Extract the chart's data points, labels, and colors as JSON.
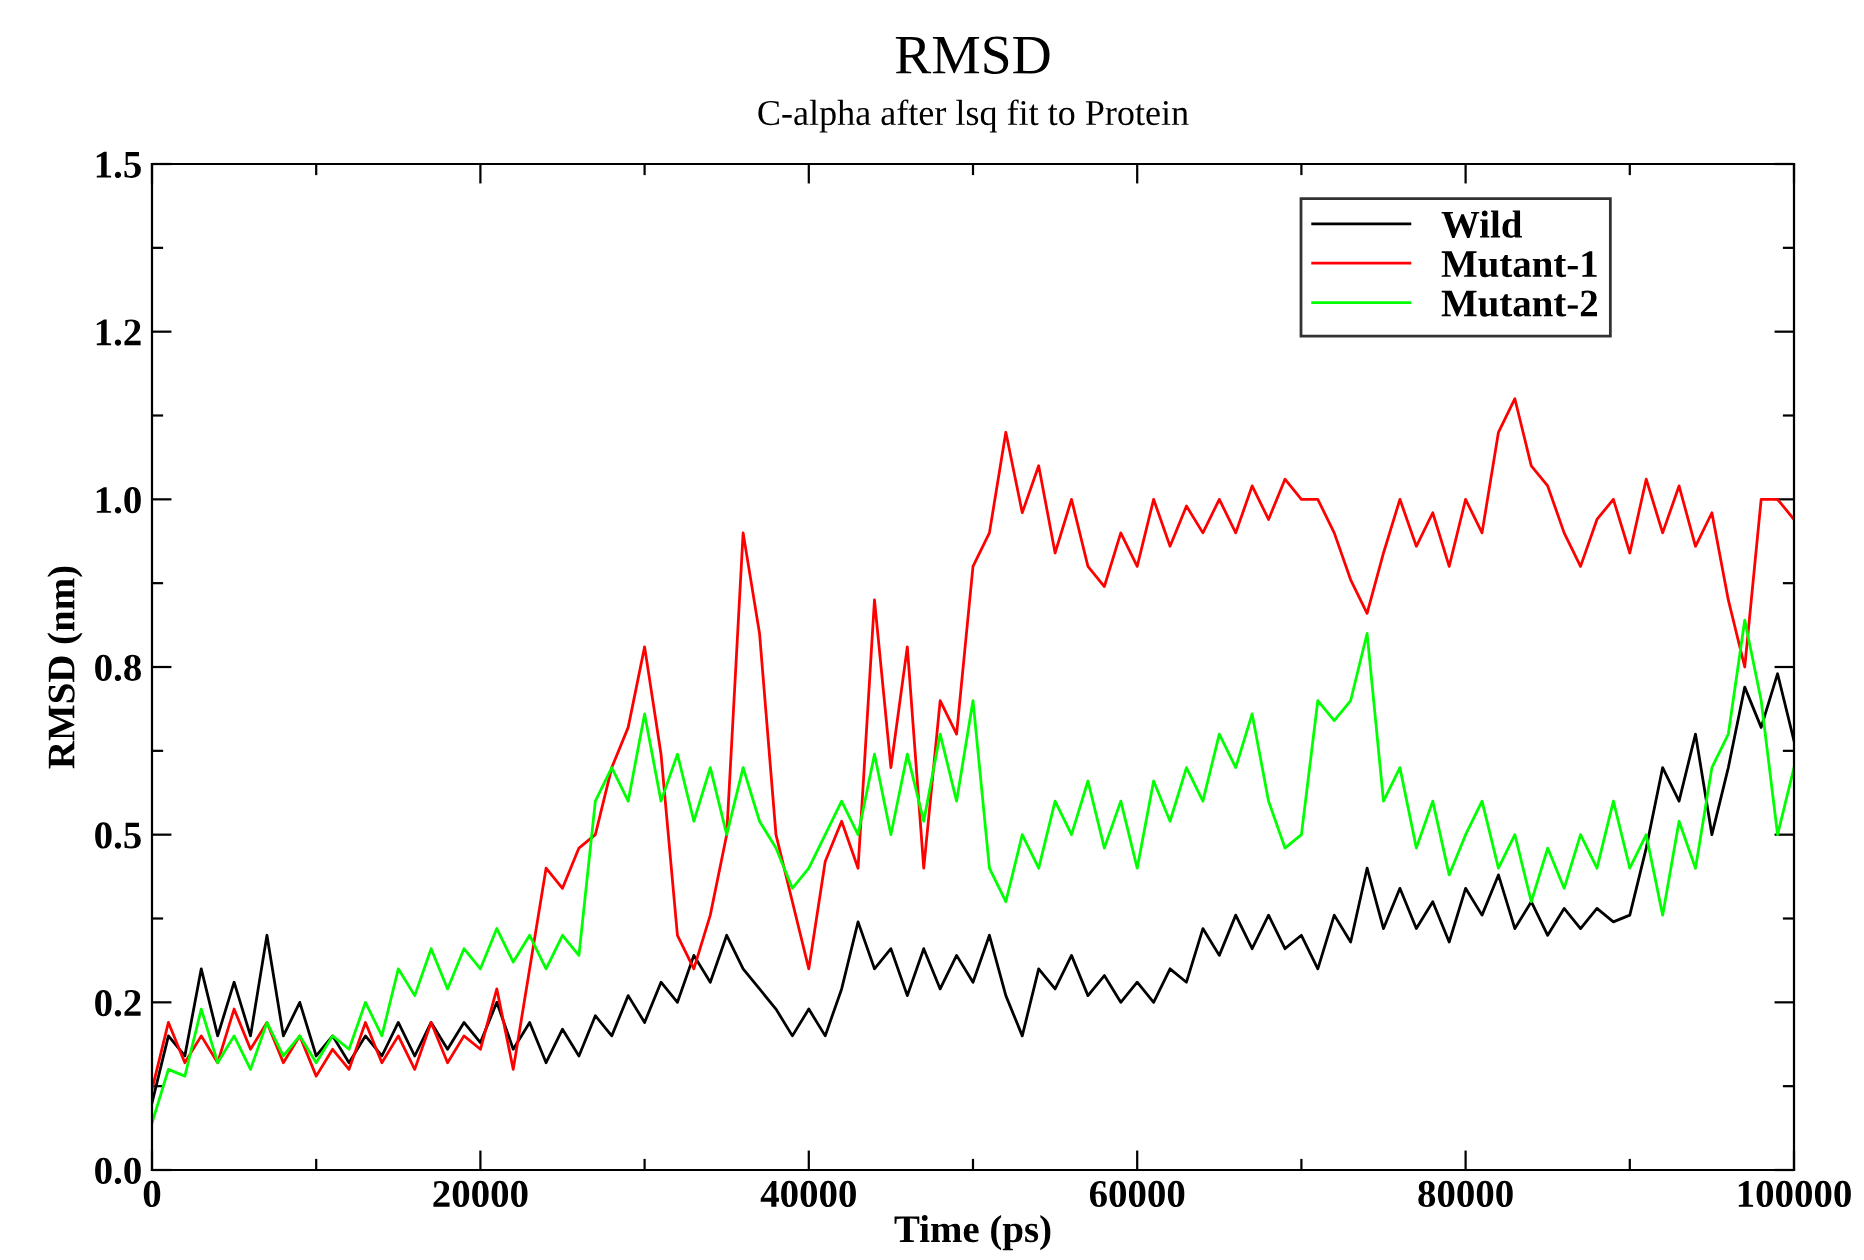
{
  "chart_data": {
    "type": "line",
    "title": "RMSD",
    "subtitle": "C-alpha after lsq fit to Protein",
    "xlabel": "Time (ps)",
    "ylabel": "RMSD (nm)",
    "x": [
      0,
      1000,
      2000,
      3000,
      4000,
      5000,
      6000,
      7000,
      8000,
      9000,
      10000,
      11000,
      12000,
      13000,
      14000,
      15000,
      16000,
      17000,
      18000,
      19000,
      20000,
      21000,
      22000,
      23000,
      24000,
      25000,
      26000,
      27000,
      28000,
      29000,
      30000,
      31000,
      32000,
      33000,
      34000,
      35000,
      36000,
      37000,
      38000,
      39000,
      40000,
      41000,
      42000,
      43000,
      44000,
      45000,
      46000,
      47000,
      48000,
      49000,
      50000,
      51000,
      52000,
      53000,
      54000,
      55000,
      56000,
      57000,
      58000,
      59000,
      60000,
      61000,
      62000,
      63000,
      64000,
      65000,
      66000,
      67000,
      68000,
      69000,
      70000,
      71000,
      72000,
      73000,
      74000,
      75000,
      76000,
      77000,
      78000,
      79000,
      80000,
      81000,
      82000,
      83000,
      84000,
      85000,
      86000,
      87000,
      88000,
      89000,
      90000,
      91000,
      92000,
      93000,
      94000,
      95000,
      96000,
      97000,
      98000,
      99000,
      100000
    ],
    "series": [
      {
        "name": "Wild",
        "color": "#000000",
        "values": [
          0.1,
          0.2,
          0.17,
          0.3,
          0.2,
          0.28,
          0.2,
          0.35,
          0.2,
          0.25,
          0.17,
          0.2,
          0.16,
          0.2,
          0.17,
          0.22,
          0.17,
          0.22,
          0.18,
          0.22,
          0.19,
          0.25,
          0.18,
          0.22,
          0.16,
          0.21,
          0.17,
          0.23,
          0.2,
          0.26,
          0.22,
          0.28,
          0.25,
          0.32,
          0.28,
          0.35,
          0.3,
          0.27,
          0.24,
          0.2,
          0.24,
          0.2,
          0.27,
          0.37,
          0.3,
          0.33,
          0.26,
          0.33,
          0.27,
          0.32,
          0.28,
          0.35,
          0.26,
          0.2,
          0.3,
          0.27,
          0.32,
          0.26,
          0.29,
          0.25,
          0.28,
          0.25,
          0.3,
          0.28,
          0.36,
          0.32,
          0.38,
          0.33,
          0.38,
          0.33,
          0.35,
          0.3,
          0.38,
          0.34,
          0.45,
          0.36,
          0.42,
          0.36,
          0.4,
          0.34,
          0.42,
          0.38,
          0.44,
          0.36,
          0.4,
          0.35,
          0.39,
          0.36,
          0.39,
          0.37,
          0.38,
          0.48,
          0.6,
          0.55,
          0.65,
          0.5,
          0.6,
          0.72,
          0.66,
          0.74,
          0.64
        ]
      },
      {
        "name": "Mutant-1",
        "color": "#ff0000",
        "values": [
          0.12,
          0.22,
          0.16,
          0.2,
          0.16,
          0.24,
          0.18,
          0.22,
          0.16,
          0.2,
          0.14,
          0.18,
          0.15,
          0.22,
          0.16,
          0.2,
          0.15,
          0.22,
          0.16,
          0.2,
          0.18,
          0.27,
          0.15,
          0.3,
          0.45,
          0.42,
          0.48,
          0.5,
          0.6,
          0.66,
          0.78,
          0.62,
          0.35,
          0.3,
          0.38,
          0.5,
          0.95,
          0.8,
          0.5,
          0.4,
          0.3,
          0.46,
          0.52,
          0.45,
          0.85,
          0.6,
          0.78,
          0.45,
          0.7,
          0.65,
          0.9,
          0.95,
          1.1,
          0.98,
          1.05,
          0.92,
          1.0,
          0.9,
          0.87,
          0.95,
          0.9,
          1.0,
          0.93,
          0.99,
          0.95,
          1.0,
          0.95,
          1.02,
          0.97,
          1.03,
          1.0,
          1.0,
          0.95,
          0.88,
          0.83,
          0.92,
          1.0,
          0.93,
          0.98,
          0.9,
          1.0,
          0.95,
          1.1,
          1.15,
          1.05,
          1.02,
          0.95,
          0.9,
          0.97,
          1.0,
          0.92,
          1.03,
          0.95,
          1.02,
          0.93,
          0.98,
          0.85,
          0.75,
          1.0,
          1.0,
          0.97
        ]
      },
      {
        "name": "Mutant-2",
        "color": "#00ff00",
        "values": [
          0.07,
          0.15,
          0.14,
          0.24,
          0.16,
          0.2,
          0.15,
          0.22,
          0.17,
          0.2,
          0.16,
          0.2,
          0.18,
          0.25,
          0.2,
          0.3,
          0.26,
          0.33,
          0.27,
          0.33,
          0.3,
          0.36,
          0.31,
          0.35,
          0.3,
          0.35,
          0.32,
          0.55,
          0.6,
          0.55,
          0.68,
          0.55,
          0.62,
          0.52,
          0.6,
          0.5,
          0.6,
          0.52,
          0.48,
          0.42,
          0.45,
          0.5,
          0.55,
          0.5,
          0.62,
          0.5,
          0.62,
          0.52,
          0.65,
          0.55,
          0.7,
          0.45,
          0.4,
          0.5,
          0.45,
          0.55,
          0.5,
          0.58,
          0.48,
          0.55,
          0.45,
          0.58,
          0.52,
          0.6,
          0.55,
          0.65,
          0.6,
          0.68,
          0.55,
          0.48,
          0.5,
          0.7,
          0.67,
          0.7,
          0.8,
          0.55,
          0.6,
          0.48,
          0.55,
          0.44,
          0.5,
          0.55,
          0.45,
          0.5,
          0.4,
          0.48,
          0.42,
          0.5,
          0.45,
          0.55,
          0.45,
          0.5,
          0.38,
          0.52,
          0.45,
          0.6,
          0.65,
          0.82,
          0.7,
          0.5,
          0.6
        ]
      }
    ],
    "xlim": [
      0,
      100000
    ],
    "xticks": [
      0,
      {
        "value": 10000,
        "label": null
      },
      20000,
      {
        "value": 30000,
        "label": null
      },
      40000,
      {
        "value": 50000,
        "label": null
      },
      60000,
      {
        "value": 70000,
        "label": null
      },
      80000,
      {
        "value": 90000,
        "label": null
      },
      100000
    ],
    "ylim": [
      0,
      1.5
    ],
    "yticks": [
      {
        "value": 0,
        "label": "0.0"
      },
      {
        "value": 0.125,
        "label": null
      },
      {
        "value": 0.25,
        "label": "0.2"
      },
      {
        "value": 0.375,
        "label": null
      },
      0.5,
      {
        "value": 0.625,
        "label": null
      },
      {
        "value": 0.75,
        "label": "0.8"
      },
      {
        "value": 0.875,
        "label": null
      },
      {
        "value": 1.0,
        "label": "1.0"
      },
      {
        "value": 1.125,
        "label": null
      },
      {
        "value": 1.25,
        "label": "1.2"
      },
      {
        "value": 1.375,
        "label": null
      },
      1.5
    ],
    "grid": false,
    "legend": "top right",
    "marker": "none",
    "line_style": "solid"
  }
}
